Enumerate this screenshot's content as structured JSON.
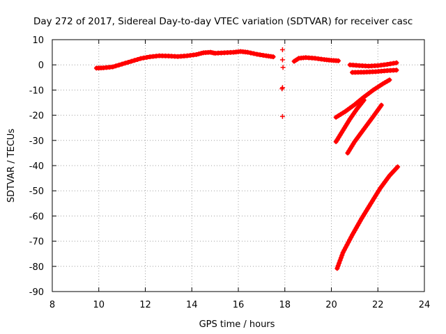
{
  "chart_data": {
    "type": "scatter",
    "title": "Day 272 of 2017, Sidereal Day-to-day VTEC variation (SDTVAR) for receiver casc",
    "xlabel": "GPS time / hours",
    "ylabel": "SDTVAR / TECUs",
    "xlim": [
      8,
      24
    ],
    "ylim": [
      -90,
      10
    ],
    "x_ticks": [
      8,
      10,
      12,
      14,
      16,
      18,
      20,
      22,
      24
    ],
    "y_ticks": [
      10,
      0,
      -10,
      -20,
      -30,
      -40,
      -50,
      -60,
      -70,
      -80,
      -90
    ],
    "grid": true,
    "marker": "plus",
    "series": [
      {
        "color": "#ff0000",
        "segments": [
          [
            [
              9.9,
              -1.3
            ],
            [
              10.2,
              -1.2
            ],
            [
              10.6,
              -0.8
            ],
            [
              11.0,
              0.3
            ],
            [
              11.4,
              1.4
            ],
            [
              11.8,
              2.5
            ],
            [
              12.2,
              3.2
            ],
            [
              12.6,
              3.6
            ],
            [
              13.0,
              3.5
            ],
            [
              13.4,
              3.3
            ],
            [
              13.8,
              3.6
            ],
            [
              14.2,
              4.1
            ],
            [
              14.5,
              4.8
            ],
            [
              14.8,
              5.0
            ],
            [
              15.0,
              4.6
            ],
            [
              15.4,
              4.8
            ],
            [
              15.8,
              5.0
            ],
            [
              16.1,
              5.3
            ],
            [
              16.4,
              5.0
            ],
            [
              16.8,
              4.2
            ],
            [
              17.2,
              3.6
            ],
            [
              17.5,
              3.2
            ]
          ],
          [
            [
              18.4,
              1.4
            ],
            [
              18.6,
              2.6
            ],
            [
              18.9,
              2.9
            ],
            [
              19.3,
              2.6
            ],
            [
              19.7,
              2.1
            ],
            [
              20.0,
              1.8
            ],
            [
              20.3,
              1.6
            ]
          ],
          [
            [
              20.8,
              0.0
            ],
            [
              21.2,
              -0.3
            ],
            [
              21.6,
              -0.5
            ],
            [
              22.0,
              -0.3
            ],
            [
              22.4,
              0.2
            ],
            [
              22.8,
              0.8
            ]
          ],
          [
            [
              20.9,
              -3.0
            ],
            [
              21.4,
              -2.9
            ],
            [
              21.9,
              -2.7
            ],
            [
              22.4,
              -2.3
            ],
            [
              22.8,
              -2.1
            ]
          ],
          [
            [
              20.2,
              -20.8
            ],
            [
              20.6,
              -18.5
            ],
            [
              21.0,
              -15.8
            ],
            [
              21.4,
              -12.8
            ],
            [
              21.8,
              -10.0
            ],
            [
              22.2,
              -7.6
            ],
            [
              22.5,
              -6.0
            ]
          ],
          [
            [
              20.2,
              -30.5
            ],
            [
              20.5,
              -26.0
            ],
            [
              20.8,
              -21.5
            ],
            [
              21.1,
              -17.5
            ],
            [
              21.4,
              -14.0
            ]
          ],
          [
            [
              20.7,
              -35.0
            ],
            [
              21.0,
              -30.5
            ],
            [
              21.4,
              -25.5
            ],
            [
              21.8,
              -20.5
            ],
            [
              22.15,
              -16.0
            ]
          ],
          [
            [
              20.25,
              -80.8
            ],
            [
              20.5,
              -74.5
            ],
            [
              20.9,
              -67.5
            ],
            [
              21.3,
              -61.0
            ],
            [
              21.7,
              -55.0
            ],
            [
              22.1,
              -49.0
            ],
            [
              22.5,
              -44.0
            ],
            [
              22.85,
              -40.5
            ]
          ]
        ],
        "points": [
          [
            17.9,
            6.0
          ],
          [
            17.9,
            2.0
          ],
          [
            17.92,
            -1.0
          ],
          [
            17.88,
            -9.5
          ],
          [
            17.9,
            -9.0
          ],
          [
            17.9,
            -20.5
          ]
        ]
      }
    ]
  }
}
